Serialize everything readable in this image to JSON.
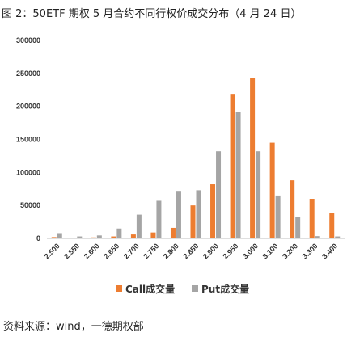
{
  "title": "图 2：50ETF 期权 5 月合约不同行权价成交分布（4 月 24 日）",
  "source": "资料来源：wind，一德期权部",
  "colors": {
    "call": "#ED7D31",
    "put": "#A5A5A5"
  },
  "chart_data": {
    "type": "bar",
    "title": "图 2：50ETF 期权 5 月合约不同行权价成交分布（4 月 24 日）",
    "xlabel": "",
    "ylabel": "",
    "ylim": [
      0,
      300000
    ],
    "yticks": [
      "0",
      "50000",
      "100000",
      "150000",
      "200000",
      "250000",
      "300000"
    ],
    "grid": false,
    "legend_position": "bottom",
    "categories": [
      "2.500",
      "2.550",
      "2.600",
      "2.650",
      "2.700",
      "2.750",
      "2.800",
      "2.850",
      "2.900",
      "2.950",
      "3.000",
      "3.100",
      "3.200",
      "3.300",
      "3.400"
    ],
    "series": [
      {
        "name": "Call成交量",
        "values": [
          2000,
          1000,
          1500,
          3000,
          6000,
          9000,
          16000,
          50000,
          82000,
          219000,
          243000,
          145000,
          88000,
          60000,
          39000
        ]
      },
      {
        "name": "Put成交量",
        "values": [
          8000,
          3000,
          4500,
          15000,
          36000,
          57000,
          72000,
          73000,
          132000,
          192000,
          132000,
          65000,
          32000,
          3500,
          3000
        ]
      }
    ]
  }
}
